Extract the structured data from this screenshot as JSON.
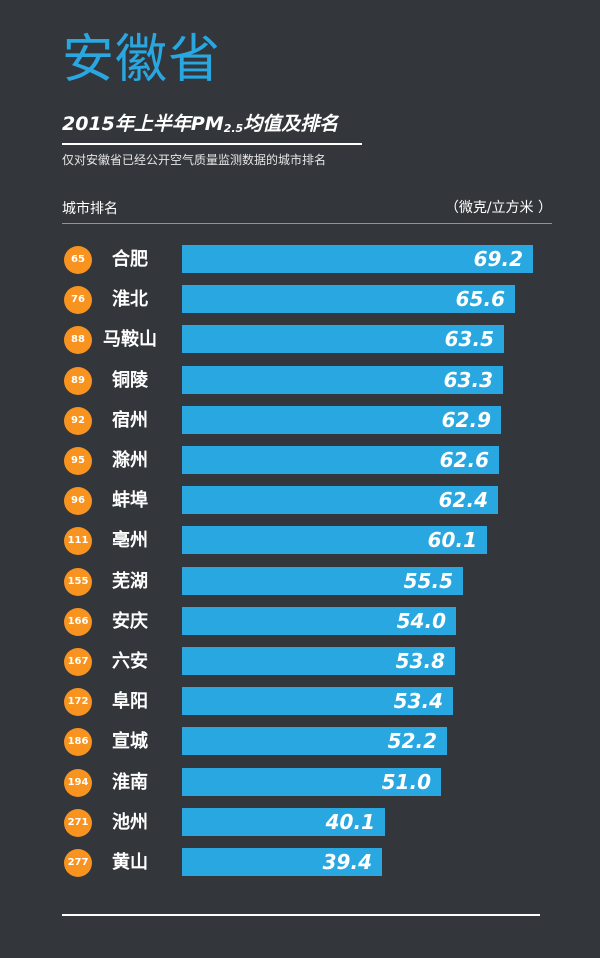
{
  "title": "安徽省",
  "subtitle": {
    "before": "2015年上半年PM",
    "sub": "2.5",
    "after": "均值及排名"
  },
  "note": "仅对安徽省已经公开空气质量监测数据的城市排名",
  "header": {
    "left": "城市排名",
    "right": "（微克/立方米 ）"
  },
  "colors": {
    "background": "#33363b",
    "title": "#29a7e1",
    "bar": "#29a7e1",
    "badge": "#f7931e"
  },
  "chart_data": {
    "type": "bar",
    "orientation": "horizontal",
    "xlim": [
      0,
      72
    ],
    "rows": [
      {
        "rank": "65",
        "city": "合肥",
        "value": 69.2
      },
      {
        "rank": "76",
        "city": "淮北",
        "value": 65.6
      },
      {
        "rank": "88",
        "city": "马鞍山",
        "value": 63.5
      },
      {
        "rank": "89",
        "city": "铜陵",
        "value": 63.3
      },
      {
        "rank": "92",
        "city": "宿州",
        "value": 62.9
      },
      {
        "rank": "95",
        "city": "滁州",
        "value": 62.6
      },
      {
        "rank": "96",
        "city": "蚌埠",
        "value": 62.4
      },
      {
        "rank": "111",
        "city": "亳州",
        "value": 60.1
      },
      {
        "rank": "155",
        "city": "芜湖",
        "value": 55.5
      },
      {
        "rank": "166",
        "city": "安庆",
        "value": 54.0
      },
      {
        "rank": "167",
        "city": "六安",
        "value": 53.8
      },
      {
        "rank": "172",
        "city": "阜阳",
        "value": 53.4
      },
      {
        "rank": "186",
        "city": "宣城",
        "value": 52.2
      },
      {
        "rank": "194",
        "city": "淮南",
        "value": 51.0
      },
      {
        "rank": "271",
        "city": "池州",
        "value": 40.1
      },
      {
        "rank": "277",
        "city": "黄山",
        "value": 39.4
      }
    ]
  }
}
